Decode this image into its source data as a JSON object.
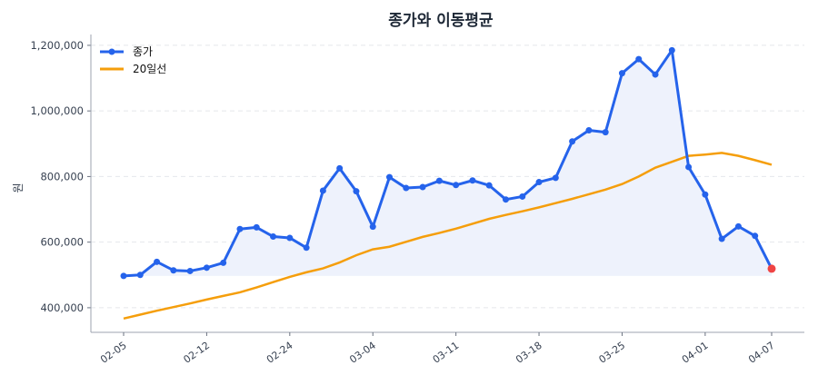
{
  "chart_data": {
    "type": "line",
    "title": "종가와 이동평균",
    "xlabel": "",
    "ylabel": "원",
    "ylim": [
      325000,
      1233000
    ],
    "yticks": [
      400000,
      600000,
      800000,
      1000000,
      1200000
    ],
    "ytick_labels": [
      "400,000",
      "600,000",
      "800,000",
      "1,000,000",
      "1,200,000"
    ],
    "grid": "horizontal dashed",
    "legend": "top-left",
    "x": [
      "02-05",
      "02-06",
      "02-07",
      "02-10",
      "02-11",
      "02-12",
      "02-13",
      "02-14",
      "02-19",
      "02-20",
      "02-24",
      "02-25",
      "02-26",
      "02-27",
      "02-28",
      "03-04",
      "03-05",
      "03-06",
      "03-07",
      "03-10",
      "03-11",
      "03-12",
      "03-13",
      "03-14",
      "03-17",
      "03-18",
      "03-19",
      "03-20",
      "03-21",
      "03-24",
      "03-25",
      "03-26",
      "03-27",
      "03-28",
      "03-31",
      "04-01",
      "04-02",
      "04-03",
      "04-04",
      "04-07"
    ],
    "xtick_labels": [
      "02-05",
      "02-12",
      "02-24",
      "03-04",
      "03-11",
      "03-18",
      "03-25",
      "04-01",
      "04-07"
    ],
    "series": [
      {
        "name": "종가",
        "color": "#2563eb",
        "marker": "circle",
        "fill": "#eef2fc",
        "values": [
          497000,
          500000,
          540000,
          514000,
          512000,
          522000,
          537000,
          640000,
          645000,
          617000,
          613000,
          583000,
          757000,
          825000,
          755000,
          647000,
          798000,
          765000,
          768000,
          787000,
          774000,
          788000,
          773000,
          730000,
          739000,
          783000,
          796000,
          907000,
          941000,
          935000,
          1115000,
          1158000,
          1111000,
          1185000,
          829000,
          745000,
          610000,
          648000,
          619000,
          519000
        ]
      },
      {
        "name": "20일선",
        "color": "#f59e0b",
        "values": [
          367000,
          379000,
          391000,
          402000,
          413000,
          425000,
          436000,
          447000,
          462000,
          478000,
          494000,
          508000,
          520000,
          538000,
          560000,
          578000,
          586000,
          601000,
          616000,
          628000,
          641000,
          656000,
          671000,
          683000,
          694000,
          706000,
          719000,
          732000,
          746000,
          760000,
          777000,
          800000,
          827000,
          845000,
          863000,
          867000,
          872000,
          863000,
          850000,
          836000
        ]
      }
    ],
    "last_point_color": "#ef4444"
  }
}
